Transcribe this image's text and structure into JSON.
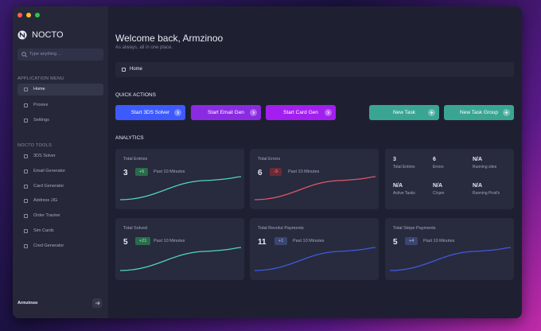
{
  "sidebar": {
    "brand": "NOCTO",
    "search_placeholder": "Type anything ...",
    "sections": [
      {
        "title": "APPLICATION MENU",
        "items": [
          "Home",
          "Proxies",
          "Settings"
        ]
      },
      {
        "title": "NOCTO TOOLS",
        "items": [
          "3DS Solver",
          "Email Generator",
          "Card Generator",
          "Address JIG",
          "Order Tracker",
          "Sim Cards",
          "Cred Generator"
        ]
      }
    ],
    "user": "Armzinoo"
  },
  "header": {
    "title": "Welcome back, Armzinoo",
    "subtitle": "As always, all in one place."
  },
  "breadcrumb": "Home",
  "quick_actions": {
    "title": "QUICK ACTIONS",
    "buttons": [
      "Start 3DS Solver",
      "Start Email Gen",
      "Start Card Gen",
      "New Task",
      "New Task Group"
    ]
  },
  "analytics": {
    "title": "ANALYTICS",
    "cards": [
      {
        "title": "Total Entries",
        "value": "3",
        "badge": "+5",
        "period": "Past 10 Minutes"
      },
      {
        "title": "Total Errors",
        "value": "6",
        "badge": "-3",
        "period": "Past 10 Minutes"
      },
      {
        "title": "Total Solved",
        "value": "5",
        "badge": "+21",
        "period": "Past 10 Minutes"
      },
      {
        "title": "Total Revolut Payments",
        "value": "11",
        "badge": "+1",
        "period": "Past 10 Minutes"
      },
      {
        "title": "Total Stripe Payments",
        "value": "5",
        "badge": "+4",
        "period": "Past 10 Minutes"
      }
    ],
    "stats": [
      {
        "value": "3",
        "label": "Total Entries"
      },
      {
        "value": "6",
        "label": "Errors"
      },
      {
        "value": "N/A",
        "label": "Running sites"
      },
      {
        "value": "N/A",
        "label": "Active Tasks"
      },
      {
        "value": "N/A",
        "label": "C/cpm"
      },
      {
        "value": "N/A",
        "label": "Running Prod's"
      }
    ]
  }
}
